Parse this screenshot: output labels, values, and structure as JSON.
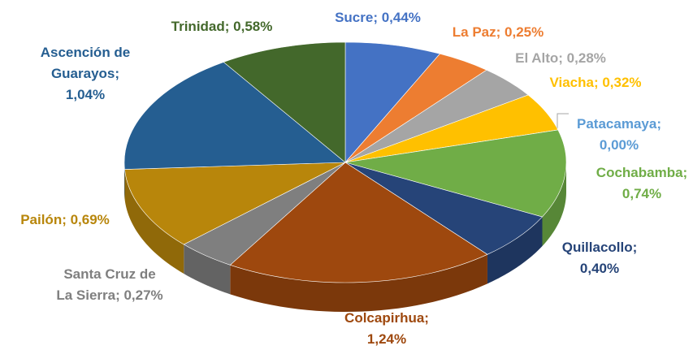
{
  "chart_data": {
    "type": "pie3d",
    "values": [
      0.44,
      0.25,
      0.28,
      0.32,
      0.0,
      0.74,
      0.4,
      1.24,
      0.27,
      0.69,
      1.04,
      0.58
    ],
    "value_labels": [
      "Sucre; 0,44%",
      "La Paz; 0,25%",
      "El Alto; 0,28%",
      "Viacha; 0,32%",
      "Patacamaya;\n0,00%",
      "Cochabamba;\n0,74%",
      "Quillacollo;\n0,40%",
      "Colcapirhua;\n1,24%",
      "Santa Cruz de\nLa Sierra; 0,27%",
      "Pailón; 0,69%",
      "Ascención de\nGuarayos;\n1,04%",
      "Trinidad; 0,58%"
    ],
    "colors": [
      "#4472c4",
      "#ed7d31",
      "#a5a5a5",
      "#ffc000",
      "#5b9bd5",
      "#70ad47",
      "#264478",
      "#9e480e",
      "#7f7f7f",
      "#b8860b",
      "#255e91",
      "#43682b"
    ]
  }
}
